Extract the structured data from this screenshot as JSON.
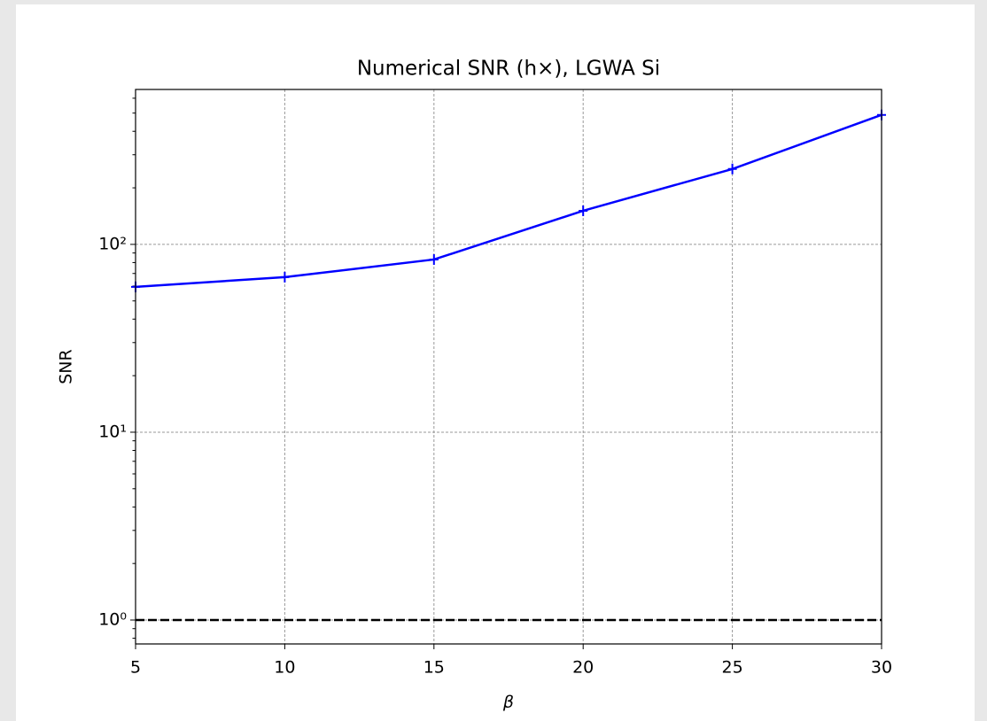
{
  "chart_data": {
    "type": "line",
    "title": "Numerical SNR (h×), LGWA Si",
    "xlabel": "β",
    "ylabel": "SNR",
    "x": [
      5,
      10,
      15,
      20,
      25,
      30
    ],
    "series": [
      {
        "color": "#0000ff",
        "marker": "+",
        "values": [
          59.4,
          66.9,
          83.1,
          151,
          252,
          489
        ]
      }
    ],
    "reference_line": {
      "y": 1,
      "color": "#000000",
      "style": "dashed"
    },
    "xlim": [
      5,
      30
    ],
    "xticks": [
      5,
      10,
      15,
      20,
      25,
      30
    ],
    "ylim": [
      0.746,
      668
    ],
    "yscale": "log",
    "yticks": [
      {
        "value": 1,
        "label": "10⁰"
      },
      {
        "value": 10,
        "label": "10¹"
      },
      {
        "value": 100,
        "label": "10²"
      }
    ],
    "y_minor_ticks": [
      0.8,
      0.9,
      2,
      3,
      4,
      5,
      6,
      7,
      8,
      9,
      20,
      30,
      40,
      50,
      60,
      70,
      80,
      90,
      200,
      300,
      400,
      500,
      600
    ],
    "grid": true
  }
}
